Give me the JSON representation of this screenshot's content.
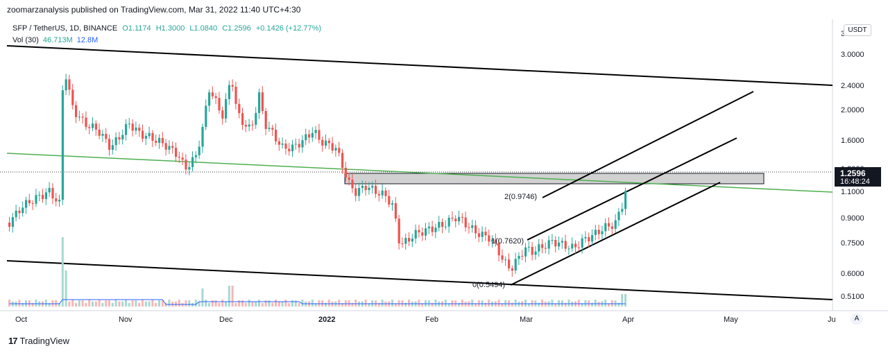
{
  "publisher_line": "zoomarzanalysis published on TradingView.com, Mar 31, 2022 11:40 UTC+4:30",
  "legend": {
    "symbol": "SFP / TetherUS, 1D, BINANCE",
    "open": "O1.1174",
    "high": "H1.3000",
    "low": "L1.0840",
    "close": "C1.2596",
    "change": "+0.1426 (+12.77%)"
  },
  "volume": {
    "label": "Vol (30)",
    "value": "46.713M",
    "ma": "12.8M"
  },
  "currency_button": "USDT",
  "price_axis": {
    "labels": [
      "3.0000",
      "2.4000",
      "2.0000",
      "1.6000",
      "1.1000",
      "0.9000",
      "0.7500",
      "0.6000",
      "0.5100"
    ],
    "top_partial": "3.6000",
    "mid_partial": "1.3000"
  },
  "last_price": {
    "price": "1.2596",
    "countdown": "16:48:24"
  },
  "time_axis": [
    "Oct",
    "Nov",
    "Dec",
    "2022",
    "Feb",
    "Mar",
    "Apr",
    "May",
    "Ju"
  ],
  "annotations": {
    "fib_2": "2(0.9746)",
    "fib_1": "1(0.7620)",
    "fib_0": "0(0.5494)"
  },
  "auto_button": "A",
  "brand": "TradingView",
  "colors": {
    "up": "#26a69a",
    "down": "#ef5350",
    "trendline_green": "#4caf50",
    "channel_black": "#000000",
    "zone_fill": "#d1d1d1"
  }
}
